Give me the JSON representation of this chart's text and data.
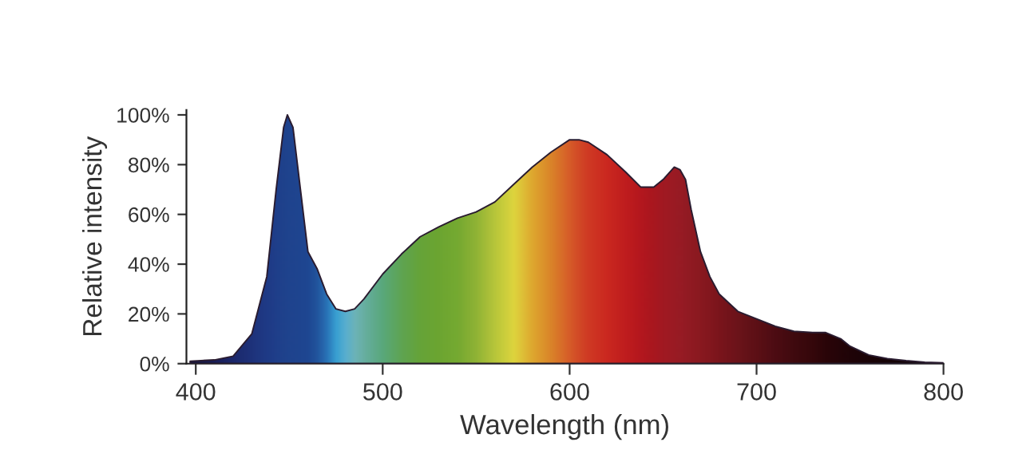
{
  "chart_data": {
    "type": "area",
    "xlabel": "Wavelength (nm)",
    "ylabel": "Relative intensity",
    "xlim": [
      395,
      800
    ],
    "ylim": [
      0,
      102
    ],
    "xticks": [
      400,
      500,
      600,
      700,
      800
    ],
    "yticks": [
      {
        "value": 0,
        "label": "0%"
      },
      {
        "value": 20,
        "label": "20%"
      },
      {
        "value": 40,
        "label": "40%"
      },
      {
        "value": 60,
        "label": "60%"
      },
      {
        "value": 80,
        "label": "80%"
      },
      {
        "value": 100,
        "label": "100%"
      }
    ],
    "grid": false,
    "legend": false,
    "series": [
      {
        "x": [
          397,
          410,
          420,
          430,
          438,
          443,
          447,
          449,
          452,
          456,
          460,
          465,
          470,
          475,
          480,
          485,
          490,
          500,
          510,
          520,
          530,
          540,
          550,
          560,
          570,
          580,
          590,
          600,
          605,
          610,
          620,
          630,
          638,
          645,
          650,
          656,
          659,
          662,
          665,
          670,
          675,
          680,
          690,
          700,
          710,
          720,
          730,
          737,
          745,
          750,
          760,
          770,
          780,
          790,
          800
        ],
        "values": [
          1,
          1.5,
          3,
          12,
          35,
          70,
          95,
          100,
          95,
          70,
          45,
          38,
          28,
          22,
          21,
          22,
          26,
          36,
          44,
          51,
          55,
          58.5,
          61,
          65,
          72,
          79,
          85,
          90,
          90,
          89,
          84,
          77,
          71,
          71,
          74,
          79,
          78,
          74,
          62,
          45,
          35,
          28,
          21,
          18,
          15,
          13,
          12.5,
          12.5,
          10,
          7,
          3.5,
          2,
          1.2,
          0.6,
          0.3
        ],
        "color": "#2a1c30",
        "colors": [
          "#161640",
          "#1a1f5a",
          "#1c2a70",
          "#1e3580",
          "#1f3d8c",
          "#1f4290",
          "#1f4592",
          "#1f4694",
          "#1f4794",
          "#1f4896",
          "#1e4a98",
          "#225aa5",
          "#2a78bf",
          "#3aa8dc",
          "#5cb8d8",
          "#70bcc0",
          "#6cb8a8",
          "#5cb080",
          "#62ac55",
          "#6aab3a",
          "#70ad32",
          "#7ab232",
          "#96bc36",
          "#c0d03c",
          "#e8e040",
          "#e8b030",
          "#e48a2a",
          "#e0602a",
          "#dc4c26",
          "#d83c24",
          "#d42a20",
          "#c81e1e",
          "#bc181e",
          "#b0181f",
          "#a81a22",
          "#a21c24",
          "#9e1c24",
          "#9a1c24",
          "#961b22",
          "#901a20",
          "#88181e",
          "#80161c",
          "#70141a",
          "#601016",
          "#500c12",
          "#420a0e",
          "#36070a",
          "#2c0508",
          "#240407",
          "#200407",
          "#1a0306",
          "#160305",
          "#140305",
          "#120204",
          "#100204"
        ]
      }
    ]
  }
}
